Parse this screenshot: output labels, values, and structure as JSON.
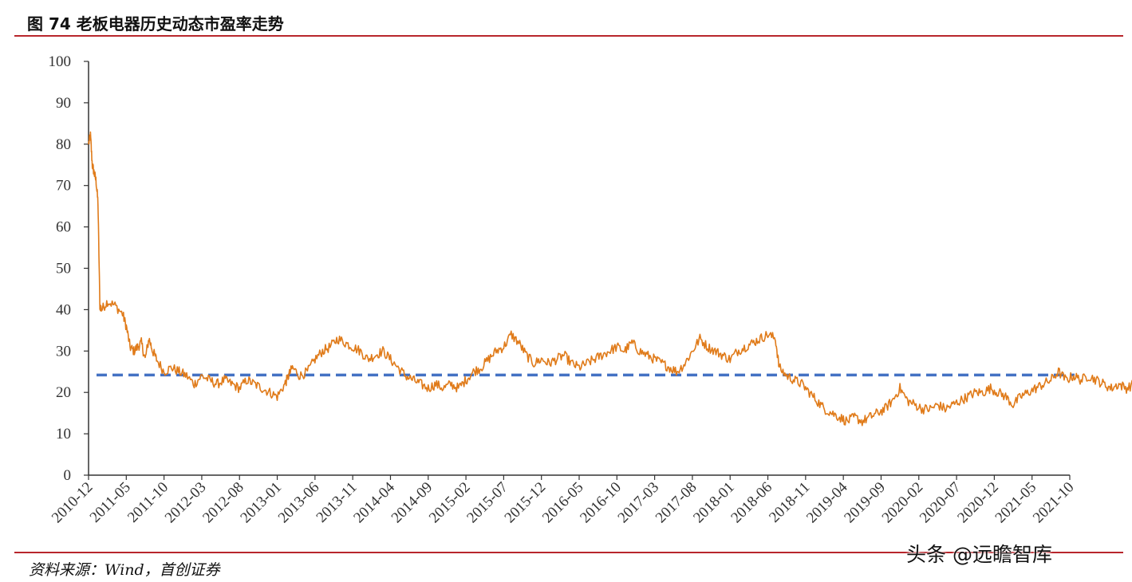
{
  "header": {
    "title": "图 74 老板电器历史动态市盈率走势"
  },
  "footer": {
    "source": "资料来源：Wind，首创证券",
    "watermark": "头条 @远瞻智库"
  },
  "colors": {
    "series": "#e07b1a",
    "mean_line": "#4472c4",
    "rule": "#b8262c",
    "axis": "#333333"
  },
  "chart_data": {
    "type": "line",
    "title": "老板电器历史动态市盈率走势",
    "xlabel": "",
    "ylabel": "",
    "ylim": [
      0,
      100
    ],
    "yticks": [
      "0",
      "10",
      "20",
      "30",
      "40",
      "50",
      "60",
      "70",
      "80",
      "90",
      "100"
    ],
    "xticks": [
      "2010-12",
      "2011-05",
      "2011-10",
      "2012-03",
      "2012-08",
      "2013-01",
      "2013-06",
      "2013-11",
      "2014-04",
      "2014-09",
      "2015-02",
      "2015-07",
      "2015-12",
      "2016-05",
      "2016-10",
      "2017-03",
      "2017-08",
      "2018-01",
      "2018-06",
      "2018-11",
      "2019-04",
      "2019-09",
      "2020-02",
      "2020-07",
      "2020-12",
      "2021-05",
      "2021-10"
    ],
    "grid": false,
    "legend": "none",
    "series": [
      {
        "values": [
          [
            0,
            80
          ],
          [
            0.05,
            82
          ],
          [
            0.1,
            75
          ],
          [
            0.15,
            73
          ],
          [
            0.2,
            71
          ],
          [
            0.25,
            66
          ],
          [
            0.3,
            41
          ],
          [
            0.35,
            40
          ],
          [
            0.5,
            42
          ],
          [
            0.7,
            41
          ],
          [
            0.9,
            39
          ],
          [
            1.0,
            36
          ],
          [
            1.1,
            31
          ],
          [
            1.2,
            30
          ],
          [
            1.3,
            31
          ],
          [
            1.4,
            32
          ],
          [
            1.5,
            28
          ],
          [
            1.6,
            33
          ],
          [
            1.7,
            30
          ],
          [
            1.8,
            28
          ],
          [
            2.0,
            25
          ],
          [
            2.2,
            26
          ],
          [
            2.4,
            25
          ],
          [
            2.6,
            24
          ],
          [
            2.8,
            22
          ],
          [
            3.0,
            24
          ],
          [
            3.2,
            23
          ],
          [
            3.4,
            22
          ],
          [
            3.6,
            23
          ],
          [
            3.8,
            22
          ],
          [
            4.0,
            21
          ],
          [
            4.2,
            23
          ],
          [
            4.4,
            22
          ],
          [
            4.6,
            21
          ],
          [
            4.8,
            20
          ],
          [
            5.0,
            19
          ],
          [
            5.2,
            22
          ],
          [
            5.3,
            24
          ],
          [
            5.4,
            26
          ],
          [
            5.6,
            24
          ],
          [
            5.8,
            25
          ],
          [
            6.0,
            28
          ],
          [
            6.2,
            30
          ],
          [
            6.4,
            31
          ],
          [
            6.6,
            33
          ],
          [
            6.8,
            32
          ],
          [
            7.0,
            31
          ],
          [
            7.2,
            30
          ],
          [
            7.4,
            28
          ],
          [
            7.6,
            29
          ],
          [
            7.8,
            30
          ],
          [
            8.0,
            28
          ],
          [
            8.2,
            26
          ],
          [
            8.4,
            24
          ],
          [
            8.6,
            23
          ],
          [
            8.8,
            22
          ],
          [
            9.0,
            21
          ],
          [
            9.2,
            22
          ],
          [
            9.4,
            21
          ],
          [
            9.6,
            22
          ],
          [
            9.8,
            21
          ],
          [
            10.0,
            23
          ],
          [
            10.2,
            25
          ],
          [
            10.4,
            26
          ],
          [
            10.6,
            28
          ],
          [
            10.8,
            30
          ],
          [
            11.0,
            31
          ],
          [
            11.2,
            34
          ],
          [
            11.4,
            32
          ],
          [
            11.6,
            29
          ],
          [
            11.8,
            27
          ],
          [
            12.0,
            28
          ],
          [
            12.2,
            27
          ],
          [
            12.4,
            28
          ],
          [
            12.6,
            29
          ],
          [
            12.8,
            27
          ],
          [
            13.0,
            26
          ],
          [
            13.2,
            27
          ],
          [
            13.4,
            28
          ],
          [
            13.6,
            29
          ],
          [
            13.8,
            30
          ],
          [
            14.0,
            31
          ],
          [
            14.2,
            30
          ],
          [
            14.4,
            32
          ],
          [
            14.6,
            30
          ],
          [
            14.8,
            29
          ],
          [
            15.0,
            28
          ],
          [
            15.2,
            27
          ],
          [
            15.4,
            26
          ],
          [
            15.6,
            25
          ],
          [
            15.8,
            27
          ],
          [
            16.0,
            30
          ],
          [
            16.2,
            33
          ],
          [
            16.4,
            31
          ],
          [
            16.6,
            30
          ],
          [
            16.8,
            29
          ],
          [
            17.0,
            28
          ],
          [
            17.2,
            30
          ],
          [
            17.4,
            31
          ],
          [
            17.6,
            32
          ],
          [
            17.8,
            33
          ],
          [
            18.0,
            34
          ],
          [
            18.2,
            33
          ],
          [
            18.3,
            26
          ],
          [
            18.5,
            24
          ],
          [
            18.7,
            23
          ],
          [
            18.9,
            22
          ],
          [
            19.1,
            20
          ],
          [
            19.3,
            18
          ],
          [
            19.5,
            16
          ],
          [
            19.7,
            15
          ],
          [
            19.9,
            14
          ],
          [
            20.1,
            13
          ],
          [
            20.3,
            14
          ],
          [
            20.5,
            13
          ],
          [
            20.7,
            14
          ],
          [
            20.9,
            15
          ],
          [
            21.1,
            16
          ],
          [
            21.3,
            18
          ],
          [
            21.5,
            21
          ],
          [
            21.7,
            18
          ],
          [
            21.9,
            17
          ],
          [
            22.1,
            16
          ],
          [
            22.3,
            16
          ],
          [
            22.5,
            17
          ],
          [
            22.7,
            16
          ],
          [
            22.9,
            17
          ],
          [
            23.1,
            18
          ],
          [
            23.3,
            19
          ],
          [
            23.5,
            20
          ],
          [
            23.7,
            20
          ],
          [
            23.9,
            21
          ],
          [
            24.1,
            20
          ],
          [
            24.3,
            19
          ],
          [
            24.5,
            17
          ],
          [
            24.7,
            19
          ],
          [
            24.9,
            20
          ],
          [
            25.1,
            21
          ],
          [
            25.3,
            22
          ],
          [
            25.5,
            23
          ],
          [
            25.7,
            25
          ],
          [
            25.9,
            23
          ],
          [
            26.1,
            24
          ],
          [
            26.3,
            23
          ],
          [
            26.5,
            24
          ],
          [
            26.7,
            23
          ],
          [
            26.9,
            22
          ],
          [
            27.1,
            21
          ],
          [
            27.3,
            22
          ],
          [
            27.5,
            21
          ],
          [
            27.7,
            22
          ],
          [
            27.9,
            24
          ],
          [
            28.1,
            25
          ],
          [
            28.3,
            23
          ],
          [
            28.5,
            20
          ],
          [
            28.7,
            18
          ],
          [
            28.9,
            17
          ],
          [
            29.1,
            17
          ],
          [
            29.3,
            16
          ]
        ]
      }
    ],
    "reference_lines": [
      {
        "axis": "y",
        "value": 24.2,
        "style": "dashed"
      }
    ]
  }
}
